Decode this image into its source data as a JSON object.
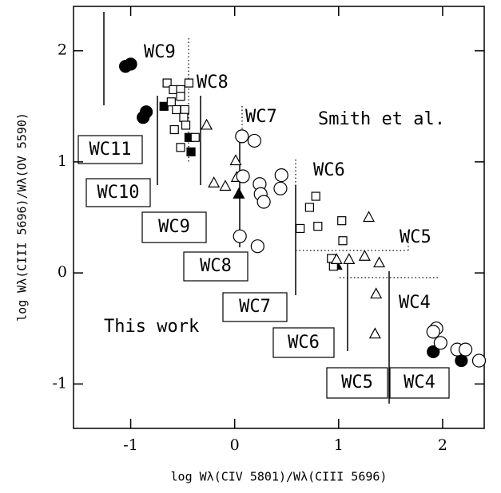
{
  "chart_data": {
    "type": "scatter",
    "xlabel": "log Wλ(CIV 5801)/Wλ(CIII 5696)",
    "ylabel": "log Wλ(CIII 5696)/Wλ(OV 5590)",
    "xlim": [
      -1.55,
      2.4
    ],
    "ylim": [
      -1.4,
      2.4
    ],
    "xticks": [
      -1,
      0,
      1,
      2
    ],
    "yticks": [
      -1,
      0,
      1,
      2
    ],
    "color": "#000000",
    "series": [
      {
        "marker": "circle",
        "filled": true,
        "x": [
          -1.05,
          -1.0,
          -0.88,
          -0.85,
          1.91,
          2.18
        ],
        "values": [
          1.86,
          1.88,
          1.4,
          1.45,
          -0.71,
          -0.79
        ]
      },
      {
        "marker": "square",
        "filled": true,
        "x": [
          -0.68,
          -0.44,
          -0.42
        ],
        "values": [
          1.5,
          1.22,
          1.09
        ]
      },
      {
        "marker": "triangle",
        "filled": true,
        "x": [
          0.04,
          0.98
        ],
        "values": [
          0.71,
          0.07
        ]
      },
      {
        "marker": "square",
        "filled": false,
        "x": [
          -0.65,
          -0.59,
          -0.52,
          -0.52,
          -0.61,
          -0.56,
          -0.48,
          -0.49,
          -0.47,
          -0.58,
          -0.52,
          -0.38,
          -0.44,
          0.78,
          0.72,
          0.63,
          0.8,
          1.03,
          1.04,
          0.93,
          0.95
        ],
        "values": [
          1.71,
          1.65,
          1.65,
          1.59,
          1.54,
          1.47,
          1.47,
          1.4,
          1.33,
          1.29,
          1.13,
          1.22,
          1.71,
          0.69,
          0.59,
          0.4,
          0.42,
          0.47,
          0.29,
          0.13,
          0.06
        ]
      },
      {
        "marker": "triangle",
        "filled": false,
        "x": [
          -0.27,
          -0.2,
          -0.09,
          0.01,
          0.02,
          0.98,
          1.1,
          1.25,
          1.39,
          1.29,
          1.36,
          1.35
        ],
        "values": [
          1.33,
          0.81,
          0.78,
          1.01,
          0.86,
          0.12,
          0.12,
          0.15,
          0.09,
          0.5,
          -0.19,
          -0.55
        ]
      },
      {
        "marker": "circle",
        "filled": false,
        "x": [
          0.07,
          0.19,
          0.08,
          0.24,
          0.25,
          0.28,
          0.45,
          0.44,
          0.05,
          0.22,
          1.94,
          1.91,
          1.98,
          2.14,
          2.22,
          2.35
        ],
        "values": [
          1.23,
          1.19,
          0.87,
          0.8,
          0.71,
          0.64,
          0.88,
          0.76,
          0.33,
          0.24,
          -0.5,
          -0.53,
          -0.63,
          -0.69,
          -0.69,
          -0.79
        ]
      }
    ],
    "annotations": [
      "WC9",
      "WC8",
      "WC7",
      "Smith et al.",
      "WC6",
      "WC5",
      "WC4",
      "This work",
      "WC11",
      "WC10",
      "WC9",
      "WC8",
      "WC7",
      "WC6",
      "WC5",
      "WC4"
    ]
  }
}
